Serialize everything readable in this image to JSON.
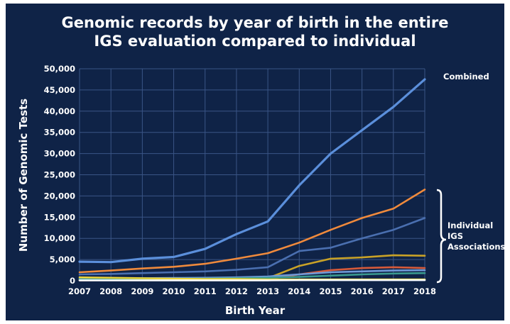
{
  "chart_data": {
    "type": "line",
    "title": [
      "Genomic records by year of birth in the entire",
      "IGS evaluation compared to individual"
    ],
    "xlabel": "Birth Year",
    "ylabel": "Number of Genomic Tests",
    "x": [
      2007,
      2008,
      2009,
      2010,
      2011,
      2012,
      2013,
      2014,
      2015,
      2016,
      2017,
      2018
    ],
    "xlim": [
      2007,
      2018
    ],
    "ylim": [
      0,
      50000
    ],
    "y_ticks": [
      0,
      5000,
      10000,
      15000,
      20000,
      25000,
      30000,
      35000,
      40000,
      45000,
      50000
    ],
    "y_tick_labels": [
      "0",
      "5,000",
      "10,000",
      "15,000",
      "20,000",
      "25,000",
      "30,000",
      "35,000",
      "40,000",
      "45,000",
      "50,000"
    ],
    "grid": true,
    "background": "#0f2347",
    "annotations": {
      "combined_label": "Combined",
      "individual_label": [
        "Individual",
        "IGS",
        "Associations"
      ]
    },
    "series": [
      {
        "color": "#5b8fdb",
        "values": [
          4500,
          4400,
          5200,
          5600,
          7500,
          11000,
          14000,
          22500,
          30000,
          35500,
          41000,
          47500
        ]
      },
      {
        "color": "#f08a3c",
        "values": [
          2000,
          2400,
          2900,
          3300,
          4000,
          5200,
          6500,
          9000,
          12000,
          14800,
          17000,
          21500
        ]
      },
      {
        "color": "#4a6fb0",
        "values": [
          1500,
          1600,
          1800,
          2000,
          2200,
          2600,
          3200,
          7000,
          7800,
          10000,
          12000,
          14800
        ]
      },
      {
        "color": "#c9a227",
        "values": [
          200,
          250,
          300,
          350,
          400,
          500,
          600,
          3500,
          5200,
          5500,
          6000,
          5900
        ]
      },
      {
        "color": "#d65a3a",
        "values": [
          100,
          150,
          200,
          250,
          300,
          350,
          400,
          1500,
          2500,
          3000,
          3200,
          3000
        ]
      },
      {
        "color": "#6f9ad8",
        "values": [
          500,
          550,
          600,
          650,
          700,
          800,
          1000,
          1500,
          2000,
          2200,
          2400,
          2500
        ]
      },
      {
        "color": "#3a9a8f",
        "values": [
          300,
          350,
          400,
          450,
          500,
          600,
          700,
          900,
          1200,
          1500,
          1700,
          1800
        ]
      },
      {
        "color": "#e8d23a",
        "values": [
          800,
          700,
          600,
          500,
          400,
          400,
          300,
          300,
          300,
          300,
          300,
          300
        ]
      },
      {
        "color": "#ffffff",
        "values": [
          100,
          100,
          100,
          100,
          100,
          100,
          100,
          150,
          150,
          150,
          150,
          150
        ]
      }
    ]
  }
}
